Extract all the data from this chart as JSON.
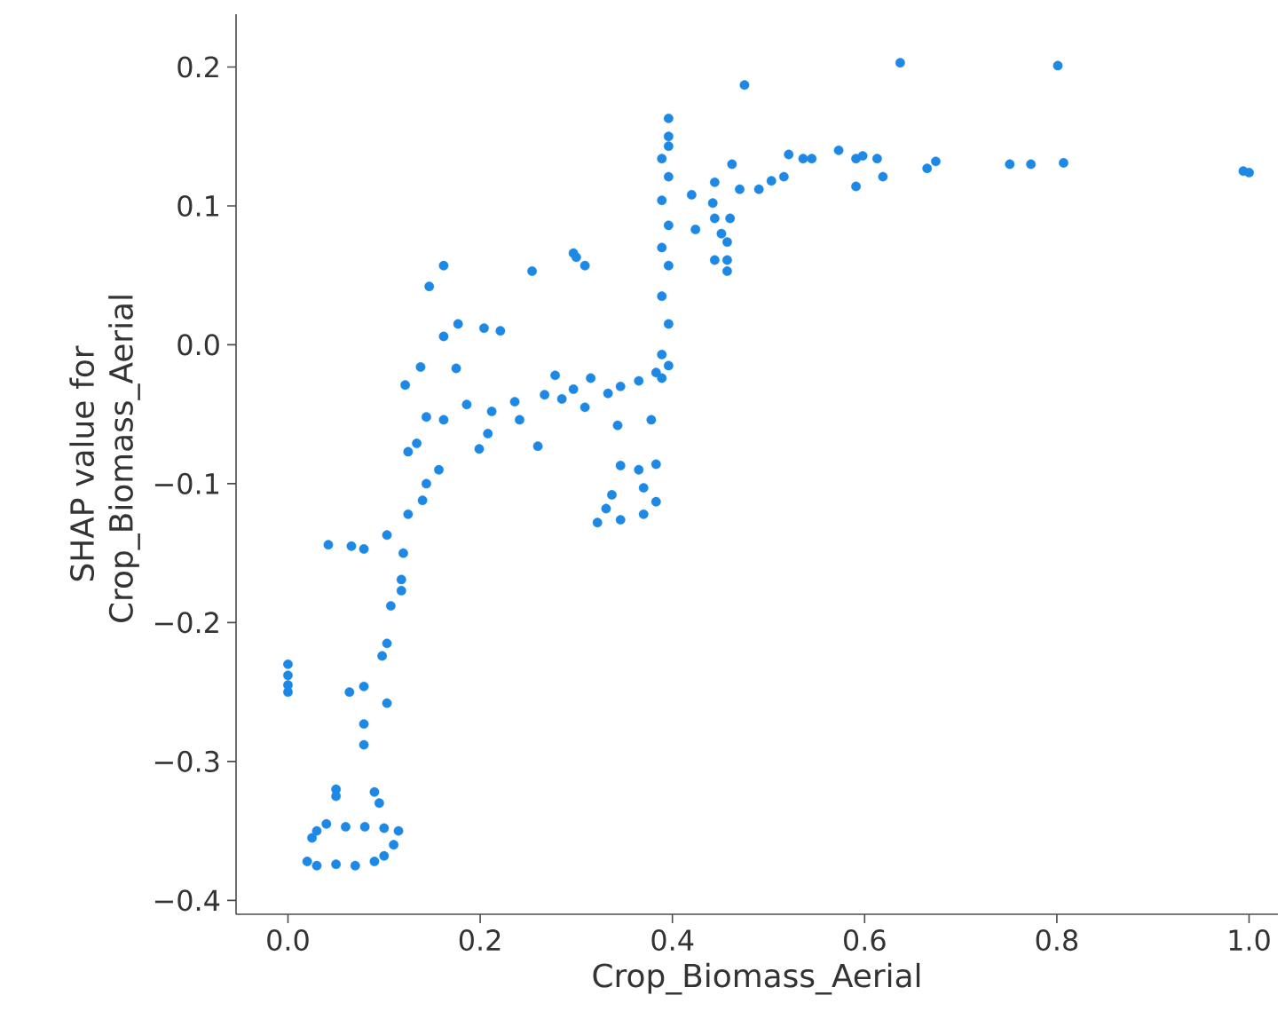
{
  "chart_data": {
    "type": "scatter",
    "xlabel": "Crop_Biomass_Aerial",
    "ylabel": "SHAP value for Crop_Biomass_Aerial",
    "xlim": [
      -0.054,
      1.03
    ],
    "ylim": [
      -0.41,
      0.238
    ],
    "xticks": [
      {
        "value": 0,
        "label": "0.0"
      },
      0.2,
      0.4,
      0.6,
      0.8,
      {
        "value": 1,
        "label": "1.0"
      }
    ],
    "yticks": [
      {
        "value": -0.4,
        "label": "−0.4"
      },
      {
        "value": -0.3,
        "label": "−0.3"
      },
      {
        "value": -0.2,
        "label": "−0.2"
      },
      {
        "value": -0.1,
        "label": "−0.1"
      },
      {
        "value": 0,
        "label": "0.0"
      },
      0.1,
      0.2
    ],
    "grid": false,
    "series": [
      {
        "color": "#1e88e5",
        "x": [
          0.0,
          0.0,
          0.0,
          0.0,
          0.02,
          0.03,
          0.05,
          0.07,
          0.09,
          0.1,
          0.11,
          0.115,
          0.025,
          0.03,
          0.04,
          0.06,
          0.08,
          0.1,
          0.05,
          0.05,
          0.09,
          0.095,
          0.064,
          0.079,
          0.103,
          0.079,
          0.079,
          0.098,
          0.103,
          0.107,
          0.118,
          0.118,
          0.042,
          0.066,
          0.079,
          0.103,
          0.12,
          0.125,
          0.14,
          0.144,
          0.157,
          0.125,
          0.134,
          0.144,
          0.162,
          0.122,
          0.138,
          0.162,
          0.177,
          0.204,
          0.221,
          0.147,
          0.162,
          0.254,
          0.3,
          0.297,
          0.309,
          0.175,
          0.186,
          0.212,
          0.199,
          0.208,
          0.241,
          0.26,
          0.236,
          0.267,
          0.285,
          0.297,
          0.309,
          0.278,
          0.315,
          0.333,
          0.346,
          0.365,
          0.343,
          0.378,
          0.383,
          0.389,
          0.346,
          0.365,
          0.383,
          0.337,
          0.331,
          0.322,
          0.346,
          0.37,
          0.383,
          0.37,
          0.389,
          0.396,
          0.389,
          0.396,
          0.389,
          0.396,
          0.389,
          0.396,
          0.389,
          0.396,
          0.396,
          0.396,
          0.396,
          0.42,
          0.424,
          0.442,
          0.444,
          0.451,
          0.457,
          0.444,
          0.457,
          0.457,
          0.444,
          0.462,
          0.47,
          0.46,
          0.475,
          0.49,
          0.503,
          0.516,
          0.521,
          0.536,
          0.545,
          0.573,
          0.591,
          0.598,
          0.591,
          0.613,
          0.619,
          0.637,
          0.665,
          0.674,
          0.751,
          0.773,
          0.807,
          0.801,
          0.994,
          1.0
        ],
        "values": [
          -0.23,
          -0.238,
          -0.245,
          -0.25,
          -0.372,
          -0.375,
          -0.374,
          -0.375,
          -0.372,
          -0.368,
          -0.36,
          -0.35,
          -0.355,
          -0.35,
          -0.345,
          -0.347,
          -0.347,
          -0.348,
          -0.325,
          -0.32,
          -0.322,
          -0.33,
          -0.25,
          -0.246,
          -0.258,
          -0.273,
          -0.288,
          -0.224,
          -0.215,
          -0.188,
          -0.169,
          -0.177,
          -0.144,
          -0.145,
          -0.147,
          -0.137,
          -0.15,
          -0.122,
          -0.112,
          -0.1,
          -0.09,
          -0.077,
          -0.071,
          -0.052,
          -0.054,
          -0.029,
          -0.016,
          0.006,
          0.015,
          0.012,
          0.01,
          0.042,
          0.057,
          0.053,
          0.063,
          0.066,
          0.057,
          -0.017,
          -0.043,
          -0.048,
          -0.075,
          -0.064,
          -0.054,
          -0.073,
          -0.041,
          -0.036,
          -0.039,
          -0.032,
          -0.045,
          -0.022,
          -0.024,
          -0.035,
          -0.03,
          -0.026,
          -0.058,
          -0.054,
          -0.02,
          -0.024,
          -0.087,
          -0.09,
          -0.086,
          -0.108,
          -0.118,
          -0.128,
          -0.126,
          -0.122,
          -0.113,
          -0.103,
          -0.007,
          0.015,
          0.035,
          0.057,
          0.07,
          0.086,
          0.104,
          0.121,
          0.134,
          0.15,
          0.163,
          0.143,
          -0.015,
          0.108,
          0.083,
          0.102,
          0.091,
          0.08,
          0.074,
          0.061,
          0.061,
          0.053,
          0.117,
          0.13,
          0.112,
          0.091,
          0.187,
          0.112,
          0.118,
          0.121,
          0.137,
          0.134,
          0.134,
          0.14,
          0.134,
          0.136,
          0.114,
          0.134,
          0.121,
          0.203,
          0.127,
          0.132,
          0.13,
          0.13,
          0.131,
          0.201,
          0.125,
          0.124
        ]
      }
    ]
  }
}
